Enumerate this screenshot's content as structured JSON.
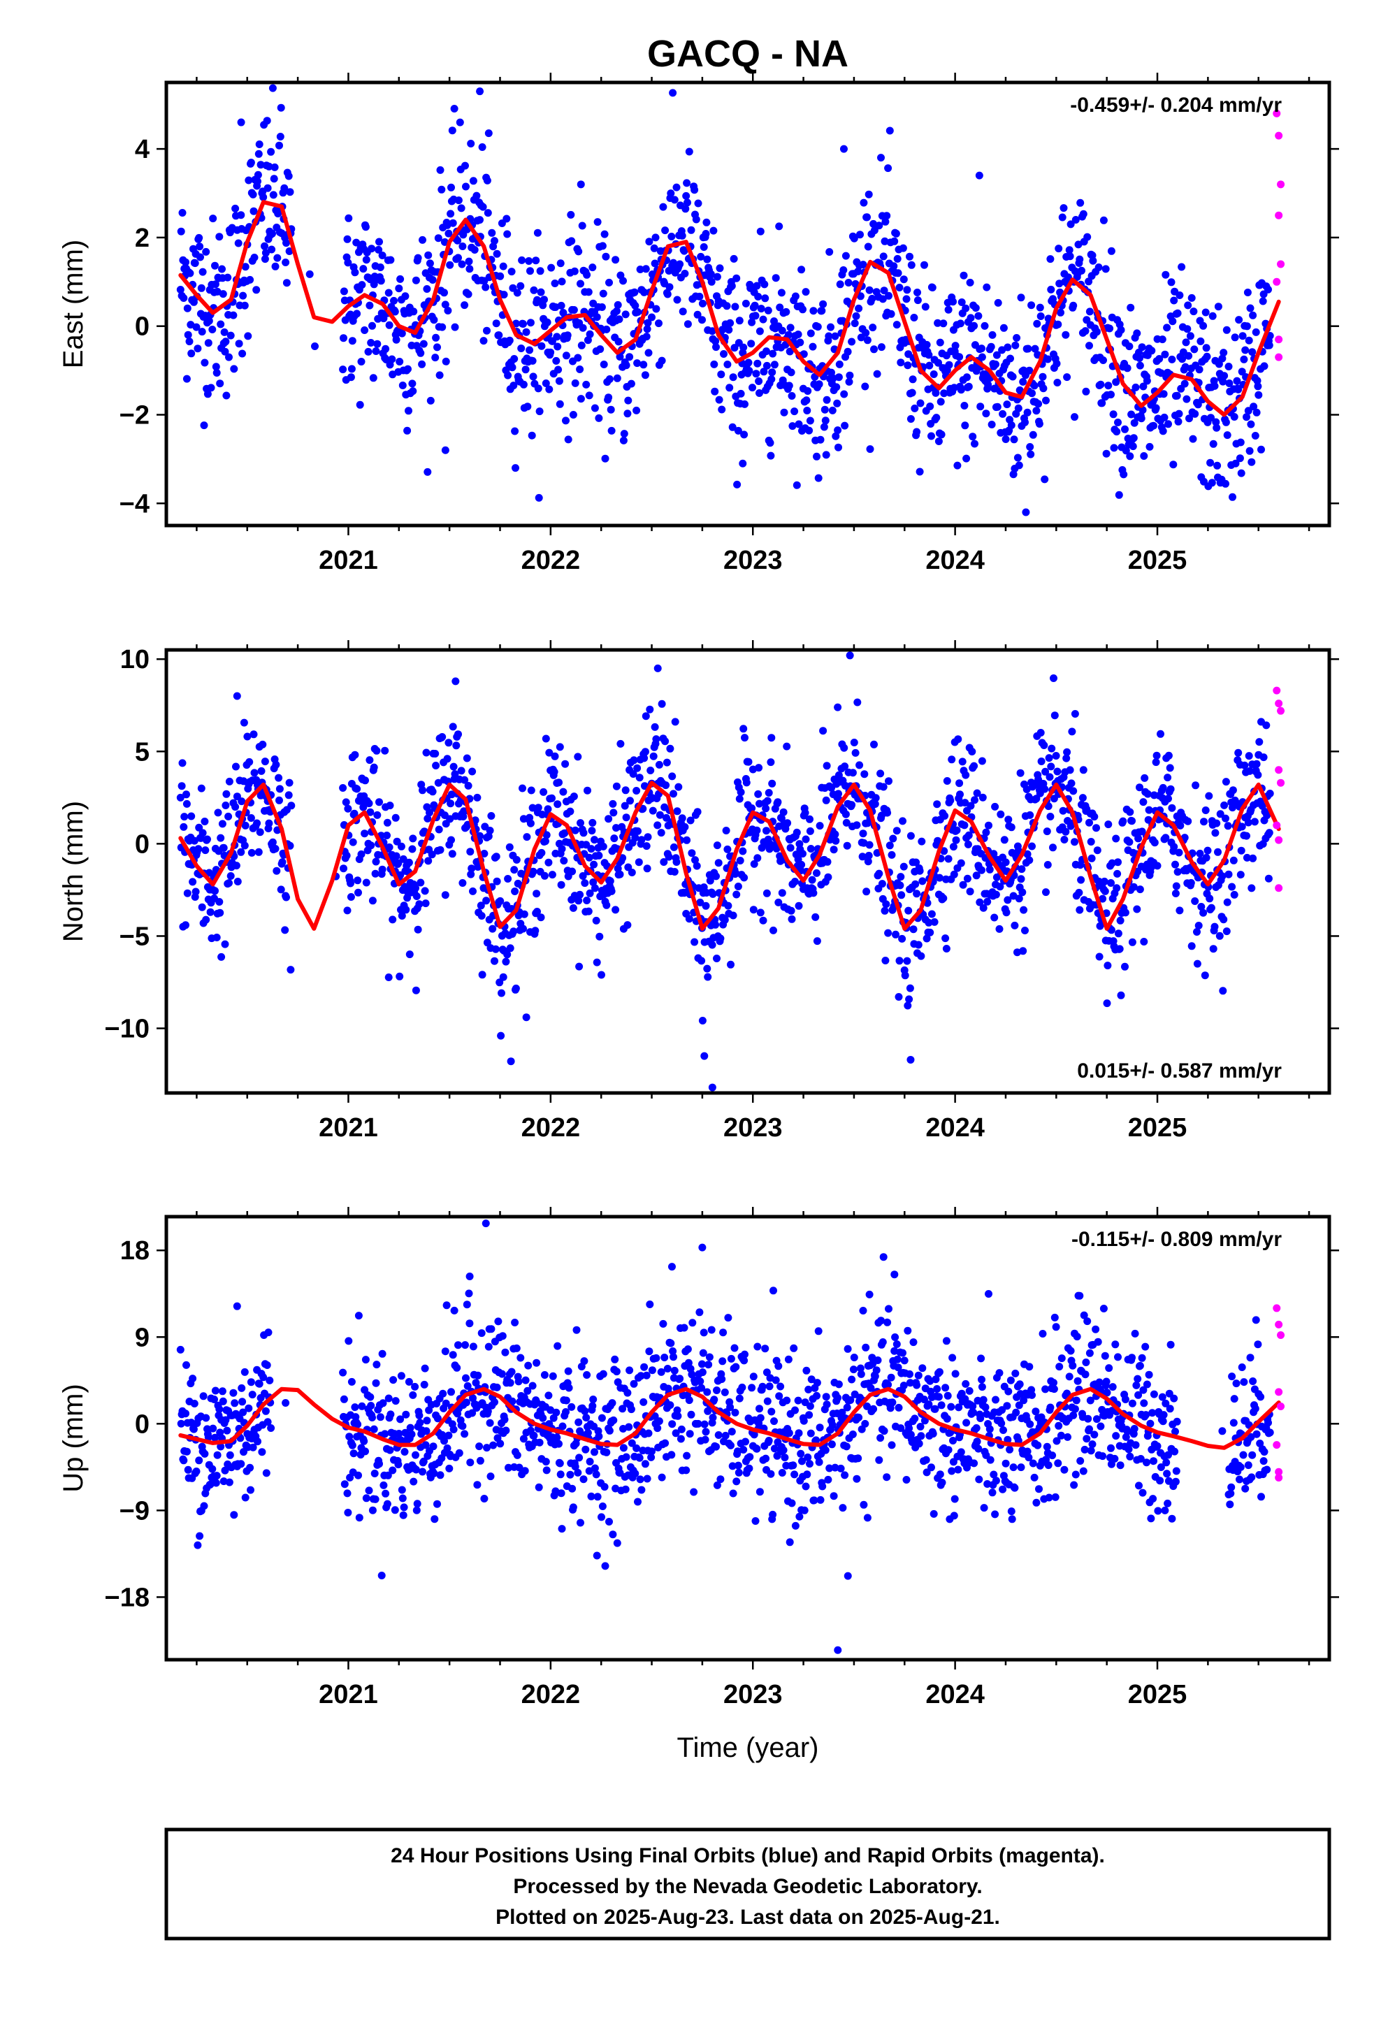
{
  "title": "GACQ - NA",
  "xlabel": "Time (year)",
  "caption": [
    "24 Hour Positions Using Final Orbits (blue) and Rapid Orbits (magenta).",
    "Processed by the Nevada Geodetic Laboratory.",
    "Plotted on 2025-Aug-23. Last data on 2025-Aug-21."
  ],
  "colors": {
    "final": "#0000ff",
    "rapid": "#ff00ff",
    "fit": "#ff0000"
  },
  "chart_data": [
    {
      "type": "scatter",
      "component": "east",
      "ylabel": "East (mm)",
      "rate_text": "-0.459+/- 0.204 mm/yr",
      "rate_position": "top-right",
      "xlim": [
        2020.1,
        2025.85
      ],
      "ylim": [
        -4.5,
        5.5
      ],
      "xticks": [
        2021,
        2022,
        2023,
        2024,
        2025
      ],
      "yticks": [
        -4,
        -2,
        0,
        2,
        4
      ],
      "ytick_labels": [
        "−4",
        "−2",
        "0",
        "2",
        "4"
      ],
      "data_span": [
        2020.17,
        2025.6
      ],
      "gap": [
        2020.72,
        2020.97
      ],
      "fit": {
        "x": [
          2020.17,
          2020.25,
          2020.33,
          2020.42,
          2020.5,
          2020.58,
          2020.67,
          2020.75,
          2020.83,
          2020.92,
          2021.0,
          2021.08,
          2021.17,
          2021.25,
          2021.33,
          2021.42,
          2021.5,
          2021.58,
          2021.67,
          2021.75,
          2021.83,
          2021.92,
          2022.0,
          2022.08,
          2022.17,
          2022.25,
          2022.33,
          2022.42,
          2022.5,
          2022.58,
          2022.67,
          2022.75,
          2022.83,
          2022.92,
          2023.0,
          2023.08,
          2023.17,
          2023.25,
          2023.33,
          2023.42,
          2023.5,
          2023.58,
          2023.67,
          2023.75,
          2023.83,
          2023.92,
          2024.0,
          2024.08,
          2024.17,
          2024.25,
          2024.33,
          2024.42,
          2024.5,
          2024.58,
          2024.67,
          2024.75,
          2024.83,
          2024.92,
          2025.0,
          2025.08,
          2025.17,
          2025.25,
          2025.33,
          2025.42,
          2025.5,
          2025.6
        ],
        "y": [
          1.15,
          0.7,
          0.3,
          0.6,
          1.9,
          2.8,
          2.7,
          1.4,
          0.2,
          0.1,
          0.45,
          0.7,
          0.5,
          0.0,
          -0.15,
          0.6,
          1.9,
          2.4,
          1.8,
          0.6,
          -0.2,
          -0.4,
          -0.1,
          0.2,
          0.25,
          -0.2,
          -0.6,
          -0.3,
          0.8,
          1.8,
          1.9,
          1.0,
          -0.2,
          -0.8,
          -0.6,
          -0.25,
          -0.3,
          -0.8,
          -1.1,
          -0.6,
          0.6,
          1.45,
          1.2,
          0.1,
          -1.0,
          -1.4,
          -1.0,
          -0.7,
          -1.0,
          -1.5,
          -1.6,
          -0.8,
          0.4,
          1.05,
          0.7,
          -0.3,
          -1.3,
          -1.8,
          -1.5,
          -1.1,
          -1.2,
          -1.7,
          -2.0,
          -1.6,
          -0.6,
          0.55
        ]
      },
      "rapid": {
        "x": [
          2025.59,
          2025.6,
          2025.61,
          2025.6,
          2025.61,
          2025.59,
          2025.6,
          2025.6
        ],
        "y": [
          4.8,
          4.3,
          3.2,
          2.5,
          1.4,
          1.0,
          -0.3,
          -0.7
        ]
      },
      "scatter_sd": 1.05,
      "outliers": {
        "x": [
          2020.47,
          2021.65,
          2022.15,
          2023.45,
          2024.12,
          2024.35,
          2021.48,
          2022.95
        ],
        "y": [
          4.6,
          5.3,
          3.2,
          4.0,
          3.4,
          -4.2,
          -2.8,
          -3.1
        ]
      }
    },
    {
      "type": "scatter",
      "component": "north",
      "ylabel": "North (mm)",
      "rate_text": "0.015+/- 0.587 mm/yr",
      "rate_position": "bottom-right",
      "xlim": [
        2020.1,
        2025.85
      ],
      "ylim": [
        -13.5,
        10.5
      ],
      "xticks": [
        2021,
        2022,
        2023,
        2024,
        2025
      ],
      "yticks": [
        -10,
        -5,
        0,
        5,
        10
      ],
      "ytick_labels": [
        "−10",
        "−5",
        "0",
        "5",
        "10"
      ],
      "data_span": [
        2020.17,
        2025.6
      ],
      "gap": [
        2020.72,
        2020.97
      ],
      "fit": {
        "x": [
          2020.17,
          2020.25,
          2020.33,
          2020.42,
          2020.5,
          2020.58,
          2020.67,
          2020.75,
          2020.83,
          2020.92,
          2021.0,
          2021.08,
          2021.17,
          2021.25,
          2021.33,
          2021.42,
          2021.5,
          2021.58,
          2021.67,
          2021.75,
          2021.83,
          2021.92,
          2022.0,
          2022.08,
          2022.17,
          2022.25,
          2022.33,
          2022.42,
          2022.5,
          2022.58,
          2022.67,
          2022.75,
          2022.83,
          2022.92,
          2023.0,
          2023.08,
          2023.17,
          2023.25,
          2023.33,
          2023.42,
          2023.5,
          2023.58,
          2023.67,
          2023.75,
          2023.83,
          2023.92,
          2024.0,
          2024.08,
          2024.17,
          2024.25,
          2024.33,
          2024.42,
          2024.5,
          2024.58,
          2024.67,
          2024.75,
          2024.83,
          2024.92,
          2025.0,
          2025.08,
          2025.17,
          2025.25,
          2025.33,
          2025.42,
          2025.5,
          2025.6
        ],
        "y": [
          0.3,
          -1.2,
          -2.2,
          -0.5,
          2.3,
          3.2,
          0.8,
          -3.0,
          -4.6,
          -2.0,
          1.0,
          1.7,
          -0.2,
          -2.2,
          -1.5,
          1.3,
          3.2,
          2.4,
          -1.5,
          -4.5,
          -3.6,
          -0.3,
          1.6,
          1.0,
          -1.2,
          -2.1,
          -0.8,
          1.7,
          3.3,
          2.6,
          -1.6,
          -4.6,
          -3.5,
          -0.3,
          1.7,
          1.2,
          -0.9,
          -2.0,
          -0.6,
          2.0,
          3.2,
          1.8,
          -1.8,
          -4.6,
          -3.6,
          -0.4,
          1.8,
          1.2,
          -0.7,
          -2.0,
          -0.6,
          1.8,
          3.2,
          1.7,
          -1.8,
          -4.6,
          -3.0,
          -0.2,
          1.7,
          1.0,
          -1.0,
          -2.2,
          -0.9,
          1.9,
          3.2,
          0.8
        ]
      },
      "rapid": {
        "x": [
          2025.59,
          2025.6,
          2025.61,
          2025.6,
          2025.61,
          2025.59,
          2025.6,
          2025.6
        ],
        "y": [
          8.3,
          7.6,
          7.2,
          4.0,
          3.3,
          1.0,
          0.2,
          -2.4
        ]
      },
      "scatter_sd": 2.1,
      "outliers": {
        "x": [
          2020.45,
          2021.53,
          2022.53,
          2022.8,
          2023.48,
          2022.76,
          2023.78,
          2021.88
        ],
        "y": [
          8.0,
          8.8,
          9.5,
          -13.2,
          10.2,
          -11.5,
          -11.7,
          -9.4
        ]
      }
    },
    {
      "type": "scatter",
      "component": "up",
      "ylabel": "Up (mm)",
      "rate_text": "-0.115+/- 0.809 mm/yr",
      "rate_position": "top-right",
      "xlim": [
        2020.1,
        2025.85
      ],
      "ylim": [
        -24.5,
        21.5
      ],
      "xticks": [
        2021,
        2022,
        2023,
        2024,
        2025
      ],
      "yticks": [
        -18,
        -9,
        0,
        9,
        18
      ],
      "ytick_labels": [
        "−18",
        "−9",
        "0",
        "9",
        "18"
      ],
      "data_span": [
        2020.17,
        2025.6
      ],
      "gap": [
        2020.62,
        2020.97
      ],
      "gap2": [
        2025.1,
        2025.35
      ],
      "fit": {
        "x": [
          2020.17,
          2020.25,
          2020.33,
          2020.42,
          2020.5,
          2020.58,
          2020.67,
          2020.75,
          2020.83,
          2020.92,
          2021.0,
          2021.08,
          2021.17,
          2021.25,
          2021.33,
          2021.42,
          2021.5,
          2021.58,
          2021.67,
          2021.75,
          2021.83,
          2021.92,
          2022.0,
          2022.08,
          2022.17,
          2022.25,
          2022.33,
          2022.42,
          2022.5,
          2022.58,
          2022.67,
          2022.75,
          2022.83,
          2022.92,
          2023.0,
          2023.08,
          2023.17,
          2023.25,
          2023.33,
          2023.42,
          2023.5,
          2023.58,
          2023.67,
          2023.75,
          2023.83,
          2023.92,
          2024.0,
          2024.08,
          2024.17,
          2024.25,
          2024.33,
          2024.42,
          2024.5,
          2024.58,
          2024.67,
          2024.75,
          2024.83,
          2024.92,
          2025.0,
          2025.08,
          2025.17,
          2025.25,
          2025.33,
          2025.42,
          2025.5,
          2025.6
        ],
        "y": [
          -1.2,
          -1.6,
          -2.0,
          -1.8,
          -0.2,
          2.0,
          3.6,
          3.5,
          2.0,
          0.5,
          -0.4,
          -0.8,
          -1.6,
          -2.2,
          -2.2,
          -1.0,
          1.2,
          3.0,
          3.6,
          2.8,
          1.2,
          0.0,
          -0.6,
          -1.0,
          -1.6,
          -2.1,
          -2.2,
          -1.0,
          1.2,
          3.0,
          3.6,
          2.8,
          1.2,
          0.0,
          -0.6,
          -1.0,
          -1.6,
          -2.1,
          -2.2,
          -1.0,
          1.2,
          3.0,
          3.6,
          2.8,
          1.2,
          0.0,
          -0.6,
          -1.0,
          -1.6,
          -2.1,
          -2.2,
          -1.0,
          1.2,
          3.0,
          3.6,
          2.6,
          1.0,
          -0.2,
          -0.9,
          -1.3,
          -1.8,
          -2.3,
          -2.5,
          -1.5,
          0.2,
          2.2
        ]
      },
      "rapid": {
        "x": [
          2025.59,
          2025.6,
          2025.61,
          2025.6,
          2025.61,
          2025.59,
          2025.6,
          2025.6
        ],
        "y": [
          12.0,
          10.3,
          9.2,
          3.3,
          1.8,
          -2.2,
          -5.0,
          -5.6
        ]
      },
      "scatter_sd": 4.2,
      "outliers": {
        "x": [
          2021.68,
          2022.75,
          2023.42,
          2023.47,
          2021.6,
          2022.6,
          2020.45,
          2023.7
        ],
        "y": [
          20.8,
          18.3,
          -23.5,
          -15.8,
          15.3,
          16.3,
          12.2,
          15.5
        ]
      }
    }
  ]
}
